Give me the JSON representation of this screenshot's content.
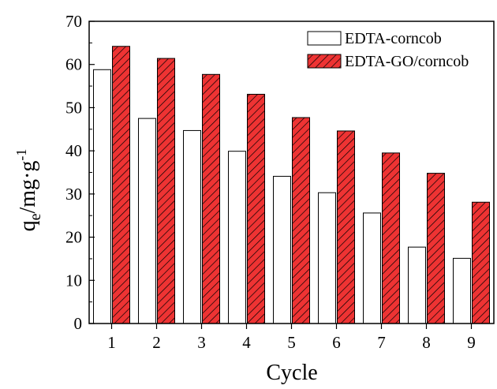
{
  "chart_data": {
    "type": "bar",
    "categories": [
      "1",
      "2",
      "3",
      "4",
      "5",
      "6",
      "7",
      "8",
      "9"
    ],
    "series": [
      {
        "name": "EDTA-corncob",
        "values": [
          58.8,
          47.5,
          44.7,
          39.9,
          34.1,
          30.3,
          25.6,
          17.7,
          15.1
        ],
        "color": "#ffffff",
        "pattern": "none"
      },
      {
        "name": "EDTA-GO/corncob",
        "values": [
          64.2,
          61.4,
          57.7,
          53.1,
          47.7,
          44.6,
          39.5,
          34.8,
          28.1
        ],
        "color": "#ee3333",
        "pattern": "diagonal-hatch"
      }
    ],
    "xlabel": "Cycle",
    "ylabel": {
      "base": "q",
      "sub": "e",
      "mid": "/mg·g",
      "sup": "-1"
    },
    "ylim": [
      0,
      70
    ],
    "yticks": [
      "0",
      "10",
      "20",
      "30",
      "40",
      "50",
      "60",
      "70"
    ],
    "grid": false,
    "legend_position": "top-right"
  }
}
